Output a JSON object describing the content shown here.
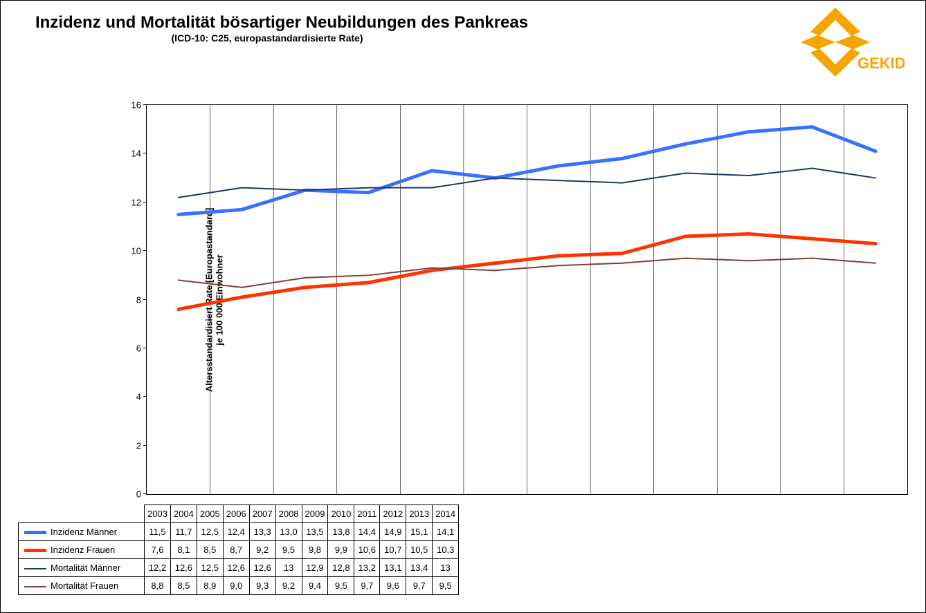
{
  "title": "Inzidenz und Mortalität bösartiger Neubildungen des Pankreas",
  "subtitle": "(ICD-10: C25, europastandardisierte Rate)",
  "y_axis_label_line1": "Altersstandardisiert Rate [Europastandard]",
  "y_axis_label_line2": "je 100 000 Einwohner",
  "logo_text": "GEKID",
  "chart": {
    "type": "line",
    "background_color": "#ffffff",
    "border_color": "#000000",
    "ylim": [
      0,
      16
    ],
    "ytick_step": 2,
    "yticks": [
      0,
      2,
      4,
      6,
      8,
      10,
      12,
      14,
      16
    ],
    "categories": [
      "2003",
      "2004",
      "2005",
      "2006",
      "2007",
      "2008",
      "2009",
      "2010",
      "2011",
      "2012",
      "2013",
      "2014"
    ],
    "grid_x": true,
    "grid_x_color": "#000000",
    "series": [
      {
        "key": "inzidenz_maenner",
        "label": "Inzidenz Männer",
        "color": "#3971ff",
        "line_width": 5,
        "values": [
          11.5,
          11.7,
          12.5,
          12.4,
          13.3,
          13.0,
          13.5,
          13.8,
          14.4,
          14.9,
          15.1,
          14.1
        ],
        "display": [
          "11,5",
          "11,7",
          "12,5",
          "12,4",
          "13,3",
          "13,0",
          "13,5",
          "13,8",
          "14,4",
          "14,9",
          "15,1",
          "14,1"
        ]
      },
      {
        "key": "inzidenz_frauen",
        "label": "Inzidenz Frauen",
        "color": "#ff3300",
        "line_width": 5,
        "values": [
          7.6,
          8.1,
          8.5,
          8.7,
          9.2,
          9.5,
          9.8,
          9.9,
          10.6,
          10.7,
          10.5,
          10.3
        ],
        "display": [
          "7,6",
          "8,1",
          "8,5",
          "8,7",
          "9,2",
          "9,5",
          "9,8",
          "9,9",
          "10,6",
          "10,7",
          "10,5",
          "10,3"
        ]
      },
      {
        "key": "mortalitaet_maenner",
        "label": "Mortalität Männer",
        "color": "#1f3864",
        "line_width": 2,
        "values": [
          12.2,
          12.6,
          12.5,
          12.6,
          12.6,
          13.0,
          12.9,
          12.8,
          13.2,
          13.1,
          13.4,
          13.0
        ],
        "display": [
          "12,2",
          "12,6",
          "12,5",
          "12,6",
          "12,6",
          "13",
          "12,9",
          "12,8",
          "13,2",
          "13,1",
          "13,4",
          "13"
        ]
      },
      {
        "key": "mortalitaet_frauen",
        "label": "Mortalität Frauen",
        "color": "#843c3c",
        "line_width": 2,
        "values": [
          8.8,
          8.5,
          8.9,
          9.0,
          9.3,
          9.2,
          9.4,
          9.5,
          9.7,
          9.6,
          9.7,
          9.5
        ],
        "display": [
          "8,8",
          "8,5",
          "8,9",
          "9,0",
          "9,3",
          "9,2",
          "9,4",
          "9,5",
          "9,7",
          "9,6",
          "9,7",
          "9,5"
        ]
      }
    ]
  },
  "logo_color": "#f4a500"
}
